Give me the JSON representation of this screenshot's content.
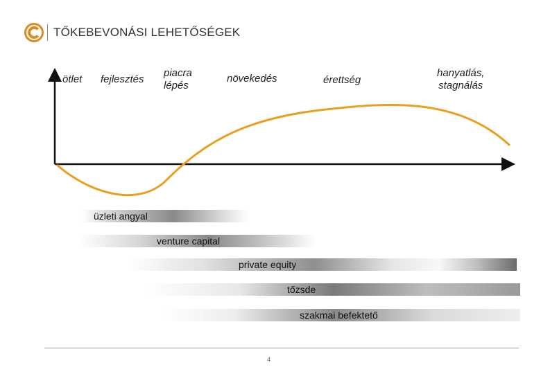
{
  "header": {
    "title": "TŐKEBEVONÁSI LEHETŐSÉGEK",
    "logo_icon": "copyright-c-icon"
  },
  "stages": [
    "ötlet",
    "fejlesztés",
    "piacra\nlépés",
    "növekedés",
    "érettség",
    "hanyatlás,\nstagnálás"
  ],
  "funding": [
    {
      "label": "üzleti angyal"
    },
    {
      "label": "venture capital"
    },
    {
      "label": "private equity"
    },
    {
      "label": "tőzsde"
    },
    {
      "label": "szakmai befektető"
    }
  ],
  "colors": {
    "curve": "#e8a020",
    "axis": "#111111",
    "logo": "#e08a1e"
  },
  "page_number": "4"
}
